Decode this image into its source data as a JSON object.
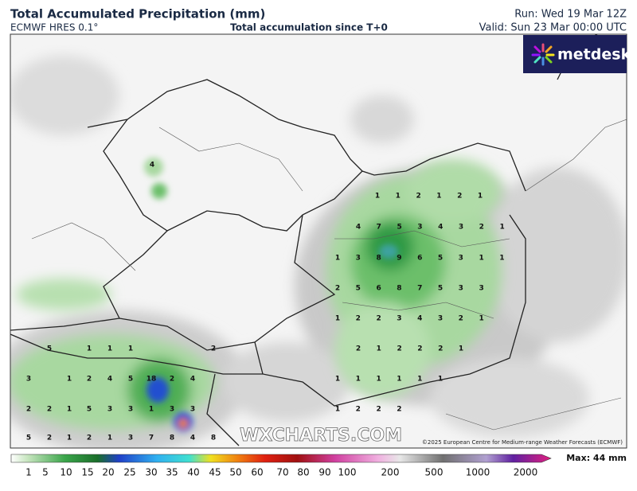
{
  "header": {
    "title": "Total Accumulated Precipitation (mm)",
    "model": "ECMWF HRES 0.1°",
    "subtitle": "Total accumulation since T+0",
    "run": "Run: Wed 19 Mar 12Z",
    "valid": "Valid: Sun 23 Mar 00:00 UTC"
  },
  "logo": "metdesk",
  "watermark": "WXCHARTS.COM",
  "copyright": "©2025 European Centre for Medium-range Weather Forecasts (ECMWF)",
  "map_labels": {
    "east": [
      [
        "1",
        "1",
        "2",
        "1",
        "2",
        "1"
      ],
      [
        "4",
        "7",
        "5",
        "3",
        "4",
        "3",
        "2",
        "1"
      ],
      [
        "1",
        "3",
        "8",
        "9",
        "6",
        "5",
        "3",
        "1",
        "1"
      ],
      [
        "2",
        "5",
        "6",
        "8",
        "7",
        "5",
        "3",
        "3"
      ],
      [
        "1",
        "2",
        "2",
        "3",
        "4",
        "3",
        "2",
        "1"
      ],
      [
        "2",
        "1",
        "2",
        "2",
        "2",
        "1"
      ],
      [
        "1",
        "1",
        "1",
        "1",
        "1",
        "1"
      ],
      [
        "1",
        "2",
        "2",
        "2"
      ]
    ],
    "north": [
      "4"
    ],
    "west": [
      [
        "5",
        "1",
        "1",
        "1",
        "2"
      ],
      [
        "3",
        "1",
        "2",
        "4",
        "5",
        "18",
        "2",
        "4"
      ],
      [
        "2",
        "2",
        "1",
        "5",
        "3",
        "3",
        "1",
        "3",
        "3"
      ],
      [
        "5",
        "2",
        "1",
        "2",
        "1",
        "3",
        "7",
        "8",
        "4",
        "8"
      ]
    ]
  },
  "colorbar": {
    "labels": [
      "1",
      "5",
      "10",
      "15",
      "20",
      "25",
      "30",
      "35",
      "40",
      "45",
      "50",
      "60",
      "70",
      "80",
      "90",
      "100",
      "200",
      "500",
      "1000",
      "2000"
    ],
    "max": "Max: 44 mm"
  }
}
